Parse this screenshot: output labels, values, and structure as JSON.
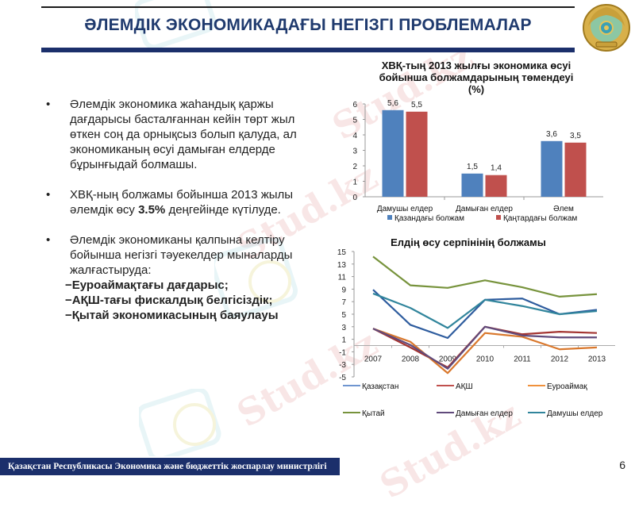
{
  "header": {
    "title": "ӘЛЕМДІК ЭКОНОМИКАДАҒЫ НЕГІЗГІ ПРОБЛЕМАЛАР"
  },
  "bullets": [
    {
      "text": "Әлемдік экономика жаһандық қаржы дағдарысы басталғаннан кейін төрт жыл өткен соң да орнықсыз болып қалуда, ал экономиканың өсуі дамыған елдерде бұрынғыдай болмашы."
    },
    {
      "pre": "ХВҚ-ның болжамы бойынша 2013 жылы әлемдік өсу ",
      "bold": "3.5%",
      "post": " деңгейінде күтілуде."
    },
    {
      "text": "Әлемдік экономиканы қалпына келтіру бойынша негізгі тәуекелдер мыналарды жалғастыруда:"
    }
  ],
  "risks": [
    "−Еуроаймақтағы дағдарыс;",
    "−АҚШ-тағы фискалдық белгісіздік;",
    "−Қытай экономикасының баяулауы"
  ],
  "bullet_symbol": "•",
  "footer": {
    "ministry": "Қазақстан Республикасы Экономика және бюджеттік жоспарлау министрлігі",
    "page_number": "6"
  },
  "watermark": "Stud.kz",
  "chart_data": [
    {
      "type": "bar",
      "title": "ХВҚ-тың 2013 жылғы экономика өсуі бойынша болжамдарының төмендеуі (%)",
      "title_lines": [
        "ХВҚ-тың 2013 жылғы экономика өсуі",
        "бойынша болжамдарының төмендеуі",
        "(%)"
      ],
      "categories": [
        "Дамушы елдер",
        "Дамыған елдер",
        "Әлем"
      ],
      "series": [
        {
          "name": "Қазандағы болжам",
          "color": "#4f81bd",
          "values": [
            5.6,
            1.5,
            3.6
          ],
          "labels": [
            "5,6",
            "1,5",
            "3,6"
          ]
        },
        {
          "name": "Қаңтардағы болжам",
          "color": "#c0504d",
          "values": [
            5.5,
            1.4,
            3.5
          ],
          "labels": [
            "5,5",
            "1,4",
            "3,5"
          ]
        }
      ],
      "ylim": [
        0,
        6
      ],
      "yticks": [
        0,
        1,
        2,
        3,
        4,
        5,
        6
      ],
      "grid": false,
      "legend_position": "bottom"
    },
    {
      "type": "line",
      "title": "Елдің өсу серпінінің болжамы",
      "x": [
        "2007",
        "2008",
        "2009",
        "2010",
        "2011",
        "2012",
        "2013"
      ],
      "series": [
        {
          "name": "Қазақстан",
          "color": "#2e5c9e",
          "legend_color": "#6f95d0",
          "values": [
            8.9,
            3.3,
            1.2,
            7.3,
            7.5,
            5.0,
            5.7
          ]
        },
        {
          "name": "АҚШ",
          "color": "#a33431",
          "legend_color": "#c0504d",
          "values": [
            2.7,
            -0.3,
            -3.5,
            3.0,
            1.8,
            2.2,
            2.0
          ]
        },
        {
          "name": "Еуроаймақ",
          "color": "#d9782d",
          "legend_color": "#f0913c",
          "values": [
            2.7,
            0.6,
            -4.4,
            2.0,
            1.4,
            -0.6,
            -0.3
          ]
        },
        {
          "name": "Қытай",
          "color": "#77933c",
          "legend_color": "#77933c",
          "values": [
            14.2,
            9.6,
            9.2,
            10.4,
            9.3,
            7.8,
            8.2
          ]
        },
        {
          "name": "Дамыған елдер",
          "color": "#604a7b",
          "legend_color": "#604a7b",
          "values": [
            2.7,
            0.1,
            -3.7,
            3.0,
            1.6,
            1.3,
            1.3
          ]
        },
        {
          "name": "Дамушы елдер",
          "color": "#31859c",
          "legend_color": "#31859c",
          "values": [
            8.3,
            6.0,
            2.8,
            7.3,
            6.3,
            5.0,
            5.5
          ]
        }
      ],
      "ylim": [
        -5,
        15
      ],
      "yticks": [
        15,
        13,
        11,
        9,
        7,
        5,
        3,
        1,
        -1,
        -3,
        -5
      ],
      "grid": false,
      "legend_position": "bottom"
    }
  ]
}
